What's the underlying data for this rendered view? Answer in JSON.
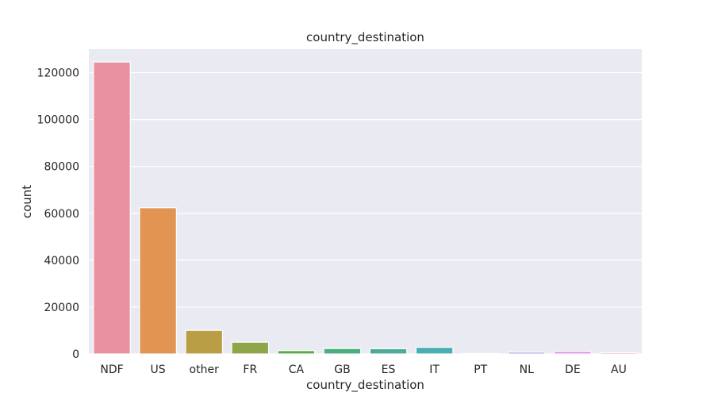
{
  "chart_data": {
    "type": "bar",
    "title": "country_destination",
    "xlabel": "country_destination",
    "ylabel": "count",
    "categories": [
      "NDF",
      "US",
      "other",
      "FR",
      "CA",
      "GB",
      "ES",
      "IT",
      "PT",
      "NL",
      "DE",
      "AU"
    ],
    "values": [
      124543,
      62376,
      10094,
      5023,
      1428,
      2324,
      2249,
      2835,
      217,
      762,
      1061,
      539
    ],
    "colors": [
      "#e8929f",
      "#e29452",
      "#b99e45",
      "#8ea648",
      "#58ad4a",
      "#4bae7e",
      "#4cab9a",
      "#4aaeb4",
      "#5aa5d9",
      "#a59ae8",
      "#e48ae6",
      "#ea8bc1"
    ],
    "ylim": [
      0,
      130000
    ],
    "yticks": [
      0,
      20000,
      40000,
      60000,
      80000,
      100000,
      120000
    ],
    "grid": true,
    "background": "#eaeaf2",
    "grid_color": "#ffffff"
  }
}
